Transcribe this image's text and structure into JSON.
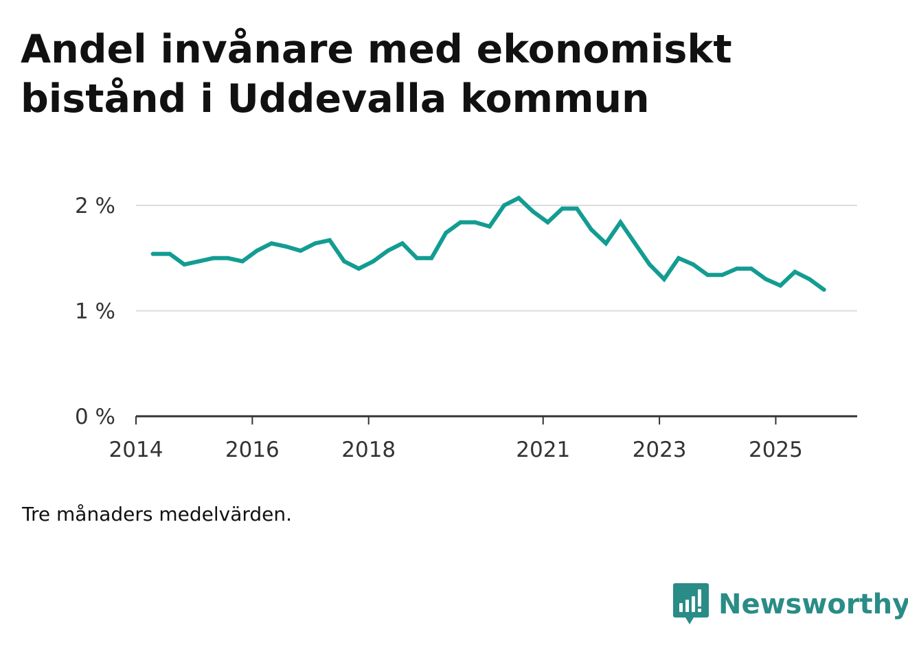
{
  "title": "Andel invånare med ekonomiskt bistånd i Uddevalla kommun",
  "note": "Tre månaders medelvärden.",
  "brand": {
    "name": "Newsworthy",
    "logo_icon": "bar-chart-speech-bubble-icon",
    "color": "#2a8c86"
  },
  "colors": {
    "line": "#139c92",
    "grid": "#dddddd",
    "axis": "#333333"
  },
  "chart_data": {
    "type": "line",
    "title": "Andel invånare med ekonomiskt bistånd i Uddevalla kommun",
    "xlabel": "",
    "ylabel": "",
    "xlim": [
      2014.0,
      2026.4
    ],
    "ylim": [
      0,
      2
    ],
    "grid": true,
    "y_ticks": [
      {
        "value": 0,
        "label": "0 %"
      },
      {
        "value": 1,
        "label": "1 %"
      },
      {
        "value": 2,
        "label": "2 %"
      }
    ],
    "x_ticks": [
      {
        "value": 2014,
        "label": "2014"
      },
      {
        "value": 2016,
        "label": "2016"
      },
      {
        "value": 2018,
        "label": "2018"
      },
      {
        "value": 2021,
        "label": "2021"
      },
      {
        "value": 2023,
        "label": "2023"
      },
      {
        "value": 2025,
        "label": "2025"
      }
    ],
    "series": [
      {
        "name": "Andel invånare med ekonomiskt bistånd",
        "unit": "%",
        "x": [
          2014.29,
          2014.58,
          2014.83,
          2015.08,
          2015.33,
          2015.58,
          2015.83,
          2016.08,
          2016.33,
          2016.58,
          2016.83,
          2017.08,
          2017.33,
          2017.58,
          2017.83,
          2018.08,
          2018.33,
          2018.58,
          2018.83,
          2019.08,
          2019.33,
          2019.58,
          2019.83,
          2020.08,
          2020.33,
          2020.58,
          2020.83,
          2021.08,
          2021.33,
          2021.58,
          2021.83,
          2022.08,
          2022.33,
          2022.58,
          2022.83,
          2023.08,
          2023.33,
          2023.58,
          2023.83,
          2024.08,
          2024.33,
          2024.58,
          2024.83,
          2025.08,
          2025.33,
          2025.58,
          2025.83
        ],
        "values": [
          1.54,
          1.54,
          1.44,
          1.47,
          1.5,
          1.5,
          1.47,
          1.57,
          1.64,
          1.61,
          1.57,
          1.64,
          1.67,
          1.47,
          1.4,
          1.47,
          1.57,
          1.64,
          1.5,
          1.5,
          1.74,
          1.84,
          1.84,
          1.8,
          2.0,
          2.07,
          1.94,
          1.84,
          1.97,
          1.97,
          1.77,
          1.64,
          1.84,
          1.64,
          1.44,
          1.3,
          1.5,
          1.44,
          1.34,
          1.34,
          1.4,
          1.4,
          1.3,
          1.24,
          1.37,
          1.3,
          1.2
        ]
      }
    ]
  }
}
